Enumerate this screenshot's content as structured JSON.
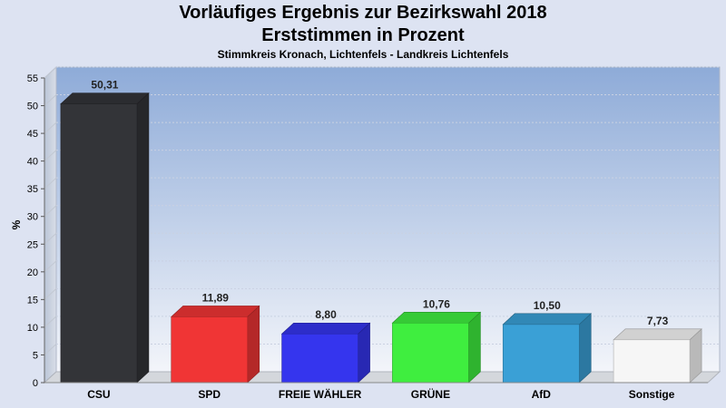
{
  "chart_data": {
    "type": "bar",
    "title": "Vorläufiges Ergebnis zur Bezirkswahl 2018",
    "subtitle": "Erststimmen in Prozent",
    "subtitle2": "Stimmkreis Kronach, Lichtenfels - Landkreis Lichtenfels",
    "ylabel": "%",
    "ylim": [
      0,
      55
    ],
    "yticks": [
      0,
      5,
      10,
      15,
      20,
      25,
      30,
      35,
      40,
      45,
      50,
      55
    ],
    "categories": [
      "CSU",
      "SPD",
      "FREIE WÄHLER",
      "GRÜNE",
      "AfD",
      "Sonstige"
    ],
    "values": [
      50.31,
      11.89,
      8.8,
      10.76,
      10.5,
      7.73
    ],
    "value_labels": [
      "50,31",
      "11,89",
      "8,80",
      "10,76",
      "10,50",
      "7,73"
    ],
    "colors": [
      "#333438",
      "#f03535",
      "#3535ee",
      "#3fee3f",
      "#3aa0d6",
      "#f6f6f6"
    ],
    "grid": true
  }
}
